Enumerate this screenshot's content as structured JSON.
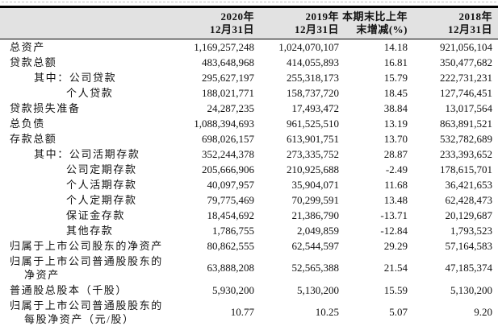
{
  "colors": {
    "header_bg": "#e2e2e2",
    "border": "#000000",
    "text": "#111111"
  },
  "table": {
    "header": {
      "columns": [
        {
          "line1": "2020年",
          "line2": "12月31日"
        },
        {
          "line1": "2019年",
          "line2": "12月31日"
        },
        {
          "line1": "本期末比上年",
          "line2": "末增减(%)"
        },
        {
          "line1": "2018年",
          "line2": "12月31日"
        }
      ]
    },
    "rows": [
      {
        "type": "plain",
        "label": "总资产",
        "values": [
          "1,169,257,248",
          "1,024,070,107",
          "14.18",
          "921,056,104"
        ]
      },
      {
        "type": "plain",
        "label": "贷款总额",
        "values": [
          "483,648,968",
          "414,055,893",
          "16.81",
          "350,477,682"
        ]
      },
      {
        "type": "qizhong",
        "prefix": "其中：",
        "label": "公司贷款",
        "values": [
          "295,627,197",
          "255,318,173",
          "15.79",
          "222,731,231"
        ]
      },
      {
        "type": "sub",
        "label": "个人贷款",
        "values": [
          "188,021,771",
          "158,737,720",
          "18.45",
          "127,746,451"
        ]
      },
      {
        "type": "plain",
        "label": "贷款损失准备",
        "values": [
          "24,287,235",
          "17,493,472",
          "38.84",
          "13,017,564"
        ]
      },
      {
        "type": "plain",
        "label": "总负债",
        "values": [
          "1,088,394,693",
          "961,525,510",
          "13.19",
          "863,891,521"
        ]
      },
      {
        "type": "plain",
        "label": "存款总额",
        "values": [
          "698,026,157",
          "613,901,751",
          "13.70",
          "532,782,689"
        ]
      },
      {
        "type": "qizhong",
        "prefix": "其中：",
        "label": "公司活期存款",
        "values": [
          "352,244,378",
          "273,335,752",
          "28.87",
          "233,393,652"
        ]
      },
      {
        "type": "sub",
        "label": "公司定期存款",
        "values": [
          "205,666,906",
          "210,925,688",
          "-2.49",
          "178,615,701"
        ]
      },
      {
        "type": "sub",
        "label": "个人活期存款",
        "values": [
          "40,097,957",
          "35,904,071",
          "11.68",
          "36,421,653"
        ]
      },
      {
        "type": "sub",
        "label": "个人定期存款",
        "values": [
          "79,775,469",
          "70,299,591",
          "13.48",
          "62,428,473"
        ]
      },
      {
        "type": "sub",
        "label": "保证金存款",
        "values": [
          "18,454,692",
          "21,386,790",
          "-13.71",
          "20,129,687"
        ]
      },
      {
        "type": "sub",
        "label": "其他存款",
        "values": [
          "1,786,755",
          "2,049,859",
          "-12.84",
          "1,793,523"
        ]
      },
      {
        "type": "plain",
        "label": "归属于上市公司股东的净资产",
        "values": [
          "80,862,555",
          "62,544,597",
          "29.29",
          "57,164,583"
        ]
      },
      {
        "type": "wrap",
        "label": "归属于上市公司普通股股东的",
        "label2": "净资产",
        "values": [
          "63,888,208",
          "52,565,388",
          "21.54",
          "47,185,374"
        ]
      },
      {
        "type": "plain",
        "label": "普通股总股本（千股）",
        "values": [
          "5,930,200",
          "5,130,200",
          "15.59",
          "5,130,200"
        ]
      },
      {
        "type": "wrap",
        "label": "归属于上市公司普通股股东的",
        "label2": "每股净资产（元/股）",
        "values": [
          "10.77",
          "10.25",
          "5.07",
          "9.20"
        ]
      }
    ]
  }
}
